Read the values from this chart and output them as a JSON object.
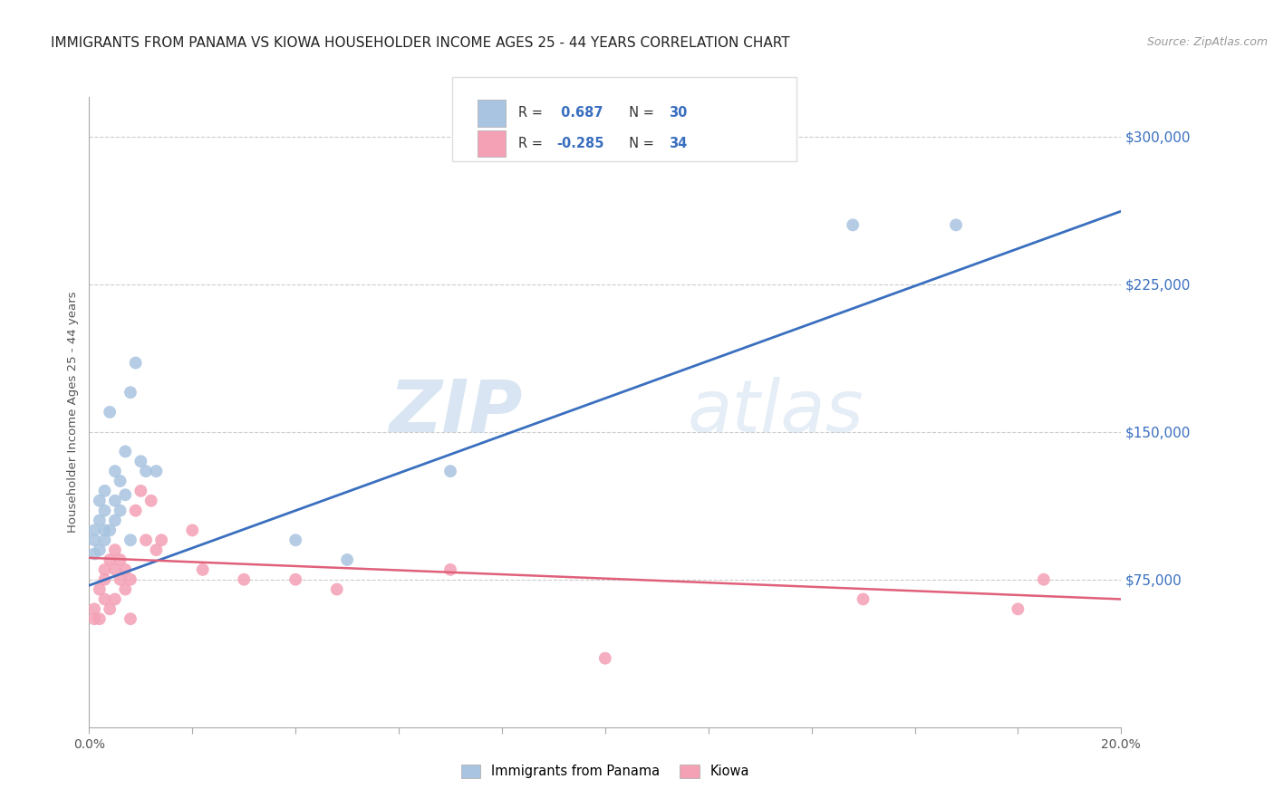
{
  "title": "IMMIGRANTS FROM PANAMA VS KIOWA HOUSEHOLDER INCOME AGES 25 - 44 YEARS CORRELATION CHART",
  "source": "Source: ZipAtlas.com",
  "ylabel": "Householder Income Ages 25 - 44 years",
  "xlim": [
    0.0,
    0.2
  ],
  "ylim": [
    0,
    320000
  ],
  "xticks": [
    0.0,
    0.02,
    0.04,
    0.06,
    0.08,
    0.1,
    0.12,
    0.14,
    0.16,
    0.18,
    0.2
  ],
  "yticks_right": [
    75000,
    150000,
    225000,
    300000
  ],
  "ytick_labels_right": [
    "$75,000",
    "$150,000",
    "$225,000",
    "$300,000"
  ],
  "blue_R": 0.687,
  "blue_N": 30,
  "pink_R": -0.285,
  "pink_N": 34,
  "blue_color": "#a8c4e0",
  "blue_line_color": "#3a6fbf",
  "pink_color": "#f4a0b5",
  "pink_line_color": "#e0607a",
  "watermark_zip": "ZIP",
  "watermark_atlas": "atlas",
  "legend_label_blue": "Immigrants from Panama",
  "legend_label_pink": "Kiowa",
  "blue_points_x": [
    0.001,
    0.001,
    0.001,
    0.002,
    0.002,
    0.002,
    0.003,
    0.003,
    0.003,
    0.003,
    0.004,
    0.004,
    0.005,
    0.005,
    0.005,
    0.006,
    0.006,
    0.007,
    0.007,
    0.008,
    0.008,
    0.009,
    0.01,
    0.011,
    0.013,
    0.04,
    0.05,
    0.07,
    0.148,
    0.168
  ],
  "blue_points_y": [
    95000,
    88000,
    100000,
    90000,
    105000,
    115000,
    110000,
    100000,
    120000,
    95000,
    160000,
    100000,
    130000,
    115000,
    105000,
    125000,
    110000,
    140000,
    118000,
    170000,
    95000,
    185000,
    135000,
    130000,
    130000,
    95000,
    85000,
    130000,
    255000,
    255000
  ],
  "pink_points_x": [
    0.001,
    0.001,
    0.002,
    0.002,
    0.003,
    0.003,
    0.003,
    0.004,
    0.004,
    0.005,
    0.005,
    0.005,
    0.006,
    0.006,
    0.007,
    0.007,
    0.008,
    0.008,
    0.009,
    0.01,
    0.011,
    0.012,
    0.013,
    0.014,
    0.02,
    0.022,
    0.03,
    0.04,
    0.048,
    0.07,
    0.1,
    0.15,
    0.18,
    0.185
  ],
  "pink_points_y": [
    60000,
    55000,
    70000,
    55000,
    65000,
    75000,
    80000,
    60000,
    85000,
    90000,
    80000,
    65000,
    75000,
    85000,
    70000,
    80000,
    55000,
    75000,
    110000,
    120000,
    95000,
    115000,
    90000,
    95000,
    100000,
    80000,
    75000,
    75000,
    70000,
    80000,
    35000,
    65000,
    60000,
    75000
  ],
  "blue_line_x": [
    0.0,
    0.2
  ],
  "blue_line_y": [
    72000,
    262000
  ],
  "pink_line_x": [
    0.0,
    0.2
  ],
  "pink_line_y": [
    86000,
    65000
  ],
  "grid_color": "#cccccc",
  "bg_color": "#ffffff",
  "title_fontsize": 11,
  "axis_fontsize": 10,
  "marker_size": 100
}
